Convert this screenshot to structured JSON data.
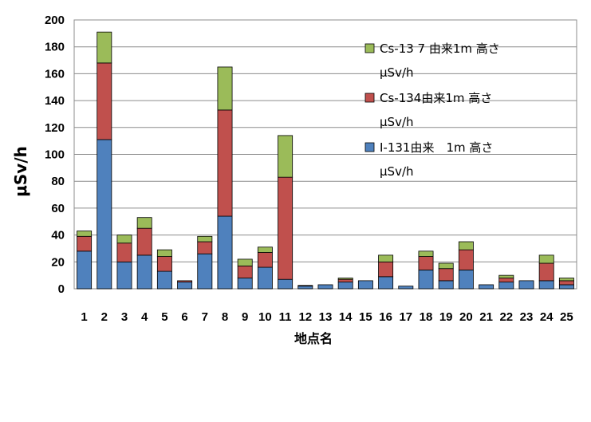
{
  "chart_data": {
    "type": "bar",
    "stacked": true,
    "categories": [
      "1",
      "2",
      "3",
      "4",
      "5",
      "6",
      "7",
      "8",
      "9",
      "10",
      "11",
      "12",
      "13",
      "14",
      "15",
      "16",
      "17",
      "18",
      "19",
      "20",
      "21",
      "22",
      "23",
      "24",
      "25"
    ],
    "series": [
      {
        "name_line1": "I-131由来　1m 高さ",
        "name_line2": "μSv/h",
        "color": "#4f81bd",
        "values": [
          28,
          111,
          20,
          25,
          13,
          5,
          26,
          54,
          8,
          16,
          7,
          2,
          3,
          5,
          6,
          9,
          2,
          14,
          6,
          14,
          3,
          5,
          6,
          6,
          3
        ]
      },
      {
        "name_line1": "Cs-134由来1m 高さ",
        "name_line2": "μSv/h",
        "color": "#c0504d",
        "values": [
          11,
          57,
          14,
          20,
          11,
          1,
          9,
          79,
          9,
          11,
          76,
          0.5,
          0,
          2,
          0,
          11,
          0,
          10,
          9,
          15,
          0,
          3,
          0,
          13,
          3
        ]
      },
      {
        "name_line1": "Cs-13 7 由来1m 高さ",
        "name_line2": "μSv/h",
        "color": "#9bbb59",
        "values": [
          4,
          23,
          6,
          8,
          5,
          0,
          4,
          32,
          5,
          4,
          31,
          0,
          0,
          1,
          0,
          5,
          0,
          4,
          4,
          6,
          0,
          2,
          0,
          6,
          2
        ]
      }
    ],
    "ylabel": "μSv/h",
    "xlabel": "地点名",
    "ylim": [
      0,
      200
    ],
    "yticks": [
      0,
      20,
      40,
      60,
      80,
      100,
      120,
      140,
      160,
      180,
      200
    ],
    "grid": true,
    "legend_position": "right"
  }
}
